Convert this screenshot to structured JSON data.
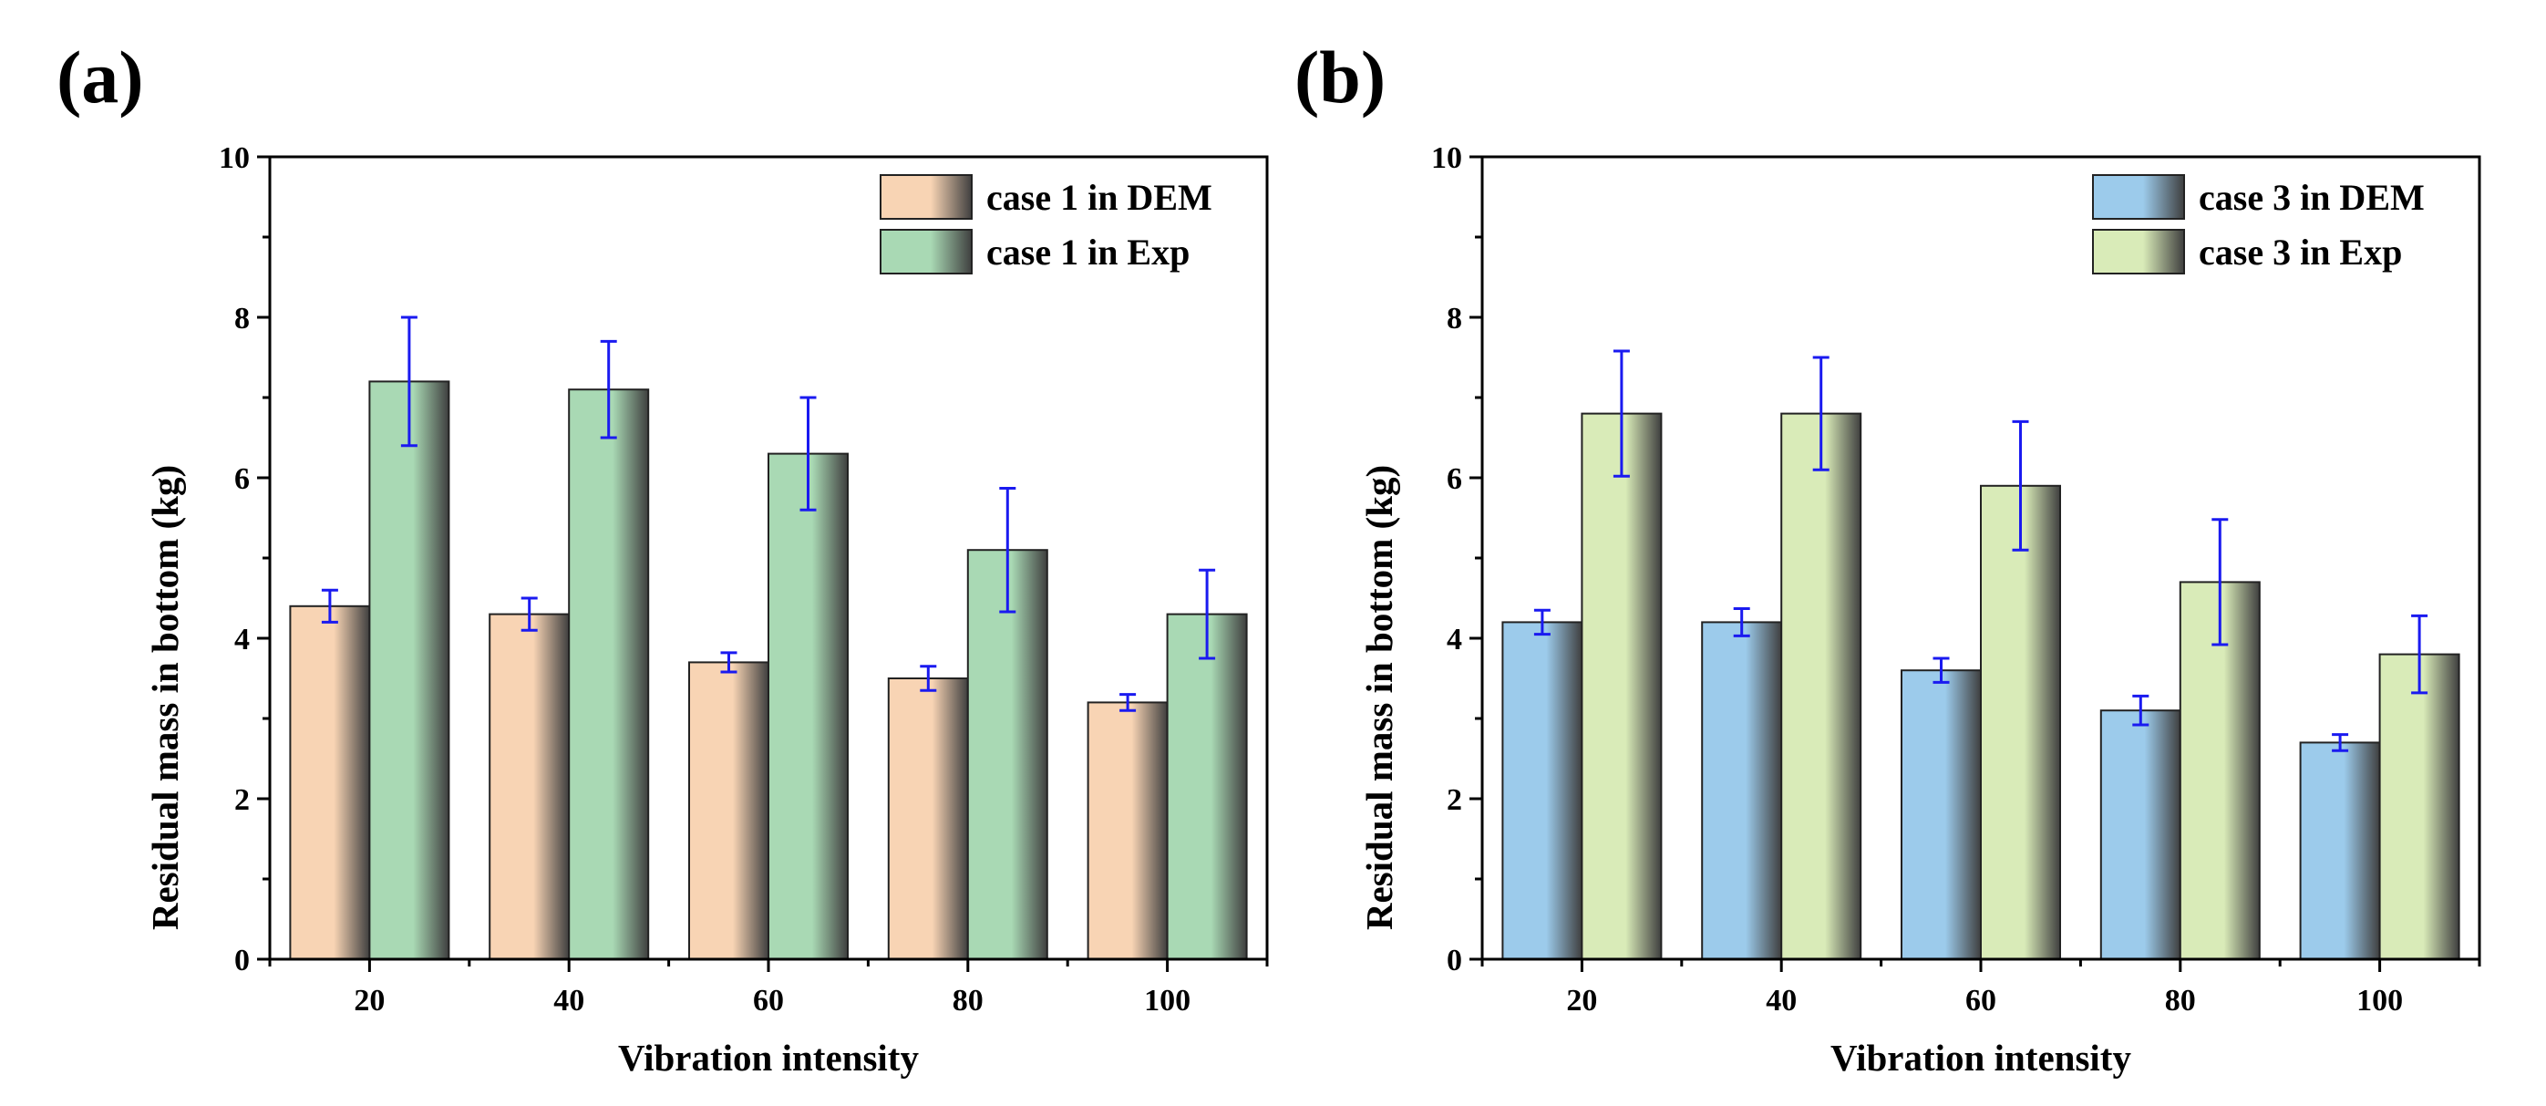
{
  "chart_data": [
    {
      "panel_label": "(a)",
      "type": "bar",
      "xlabel": "Vibration intensity",
      "ylabel": "Residual mass in bottom (kg)",
      "ylim": [
        0,
        10
      ],
      "yticks": [
        0,
        2,
        4,
        6,
        8,
        10
      ],
      "categories": [
        "20",
        "40",
        "60",
        "80",
        "100"
      ],
      "legend_position": "top-right",
      "grid": false,
      "series": [
        {
          "name": "case 1 in DEM",
          "color": "#f8d4b4",
          "values": [
            4.4,
            4.3,
            3.7,
            3.5,
            3.2
          ],
          "errors": [
            0.2,
            0.2,
            0.12,
            0.15,
            0.1
          ]
        },
        {
          "name": "case 1 in Exp",
          "color": "#a9d9b4",
          "values": [
            7.2,
            7.1,
            6.3,
            5.1,
            4.3
          ],
          "errors": [
            0.8,
            0.6,
            0.7,
            0.77,
            0.55
          ]
        }
      ]
    },
    {
      "panel_label": "(b)",
      "type": "bar",
      "xlabel": "Vibration intensity",
      "ylabel": "Residual mass in bottom (kg)",
      "ylim": [
        0,
        10
      ],
      "yticks": [
        0,
        2,
        4,
        6,
        8,
        10
      ],
      "categories": [
        "20",
        "40",
        "60",
        "80",
        "100"
      ],
      "legend_position": "top-right",
      "grid": false,
      "series": [
        {
          "name": "case 3 in DEM",
          "color": "#9ccbeb",
          "values": [
            4.2,
            4.2,
            3.6,
            3.1,
            2.7
          ],
          "errors": [
            0.15,
            0.17,
            0.15,
            0.18,
            0.1
          ]
        },
        {
          "name": "case 3 in Exp",
          "color": "#d9ebb8",
          "values": [
            6.8,
            6.8,
            5.9,
            4.7,
            3.8
          ],
          "errors": [
            0.78,
            0.7,
            0.8,
            0.78,
            0.48
          ]
        }
      ]
    }
  ]
}
